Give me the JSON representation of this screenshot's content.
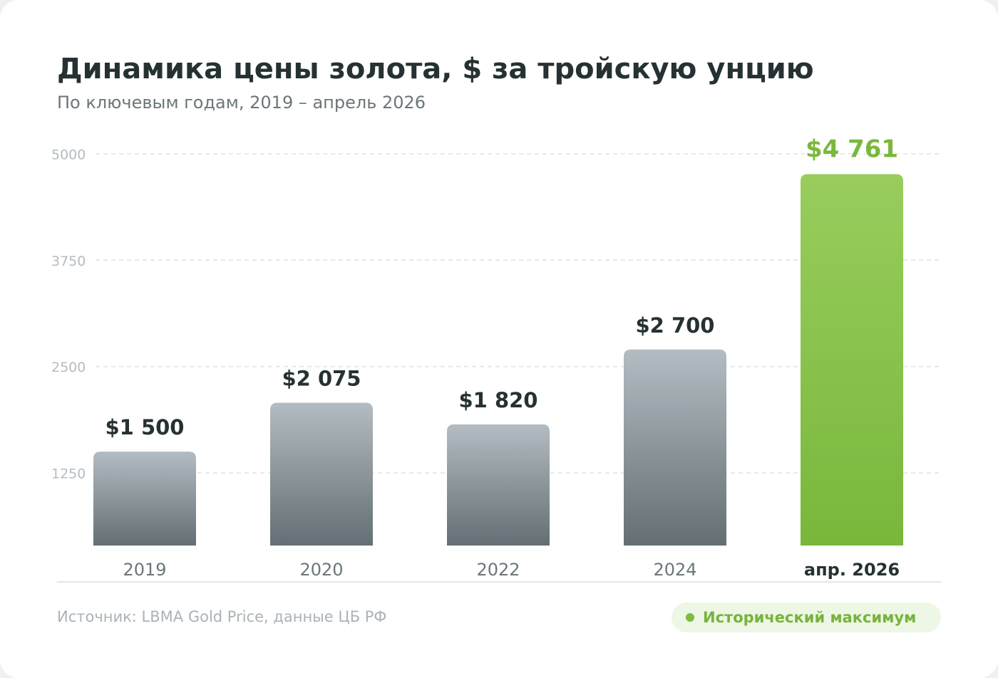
{
  "header": {
    "title": "Динамика цены золота, $ за тройскую унцию",
    "subtitle": "По ключевым годам, 2019 – апрель 2026"
  },
  "chart_data": {
    "type": "bar",
    "title": "Динамика цены золота, $ за тройскую унцию",
    "subtitle": "По ключевым годам, 2019 – апрель 2026",
    "xlabel": "",
    "ylabel": "",
    "categories": [
      "2019",
      "2020",
      "2022",
      "2024",
      "апр. 2026"
    ],
    "values": [
      1500,
      2075,
      1820,
      2700,
      4761
    ],
    "value_labels": [
      "$1 500",
      "$2 075",
      "$1 820",
      "$2 700",
      "$4 761"
    ],
    "highlight_index": 4,
    "yticks": [
      1250,
      2500,
      3750,
      5000
    ],
    "ylim": [
      0,
      5000
    ],
    "grid": true,
    "colors": {
      "bar_top": "#b3bcc2",
      "bar_bottom": "#636f74",
      "highlight_top": "#98cd5d",
      "highlight_bottom": "#79b73b",
      "highlight_text": "#7ab83c",
      "label_text": "#263133",
      "tick_text": "#b4bcc1",
      "category_text": "#6b7679",
      "grid": "#dde1e4"
    }
  },
  "footer": {
    "source": "Источник: LBMA Gold Price, данные ЦБ РФ",
    "badge_label": "Исторический максимум",
    "badge_color": "#7cbd3f"
  }
}
